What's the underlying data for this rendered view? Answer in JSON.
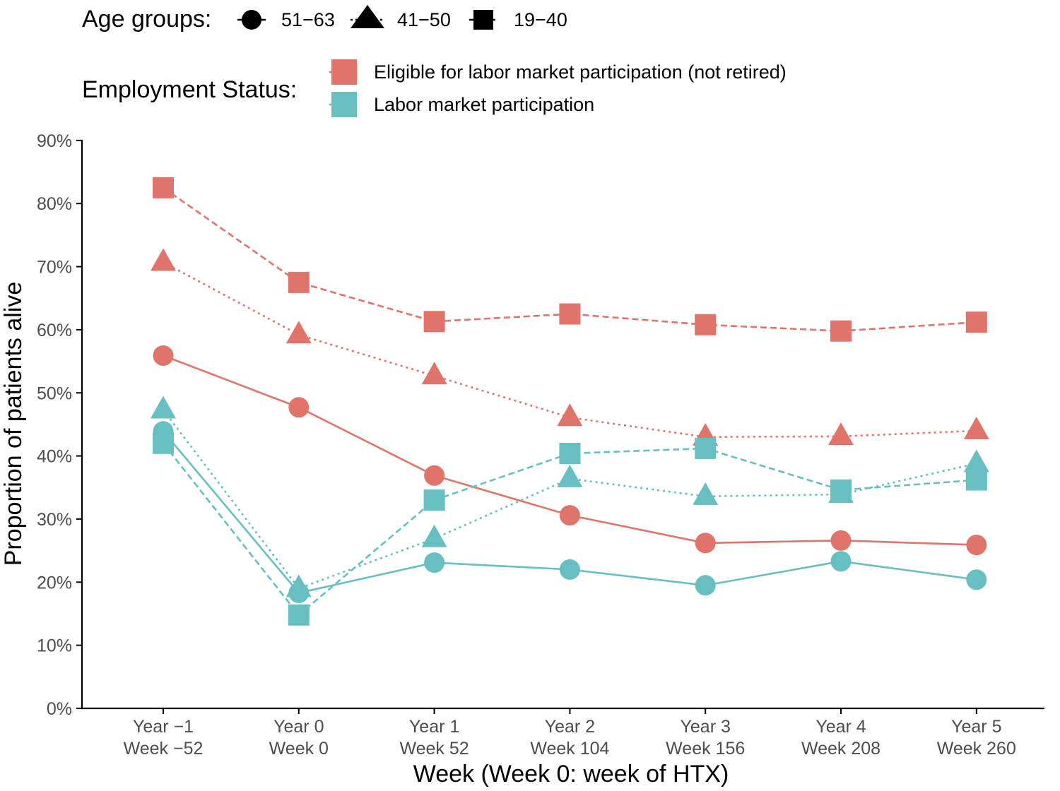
{
  "chart_data": {
    "type": "line",
    "xlabel": "Week (Week 0: week of HTX)",
    "ylabel": "Proportion of patients alive",
    "x_ticks": [
      [
        "Year −1",
        "Week −52"
      ],
      [
        "Year 0",
        "Week 0"
      ],
      [
        "Year 1",
        "Week 52"
      ],
      [
        "Year 2",
        "Week 104"
      ],
      [
        "Year 3",
        "Week 156"
      ],
      [
        "Year 4",
        "Week 208"
      ],
      [
        "Year 5",
        "Week 260"
      ]
    ],
    "y_ticks": [
      "0%",
      "10%",
      "20%",
      "30%",
      "40%",
      "50%",
      "60%",
      "70%",
      "80%",
      "90%"
    ],
    "ylim": [
      0,
      90
    ],
    "grid": false,
    "legend_placement": "top",
    "legend_age": {
      "title": "Age groups:",
      "items": [
        {
          "label": "51−63",
          "shape": "circle",
          "linetype": "solid"
        },
        {
          "label": "41−50",
          "shape": "triangle",
          "linetype": "dotted"
        },
        {
          "label": "19−40",
          "shape": "square",
          "linetype": "dashed"
        }
      ]
    },
    "legend_status": {
      "title": "Employment Status:",
      "items": [
        {
          "label": "Eligible for labor market participation (not retired)",
          "color": "#E0736A"
        },
        {
          "label": "Labor market participation",
          "color": "#67BFC2"
        }
      ]
    },
    "series": [
      {
        "status": "Eligible for labor market participation (not retired)",
        "age": "51−63",
        "color": "#E0736A",
        "shape": "circle",
        "linetype": "solid",
        "values": [
          55.9,
          47.7,
          36.9,
          30.6,
          26.2,
          26.6,
          25.9
        ]
      },
      {
        "status": "Eligible for labor market participation (not retired)",
        "age": "41−50",
        "color": "#E0736A",
        "shape": "triangle",
        "linetype": "dotted",
        "values": [
          70.7,
          59.2,
          52.7,
          46.1,
          43.0,
          43.1,
          44.0
        ]
      },
      {
        "status": "Eligible for labor market participation (not retired)",
        "age": "19−40",
        "color": "#E0736A",
        "shape": "square",
        "linetype": "dashed",
        "values": [
          82.5,
          67.5,
          61.3,
          62.5,
          60.8,
          59.8,
          61.2
        ]
      },
      {
        "status": "Labor market participation",
        "age": "51−63",
        "color": "#67BFC2",
        "shape": "circle",
        "linetype": "solid",
        "values": [
          43.9,
          18.3,
          23.1,
          22.0,
          19.5,
          23.3,
          20.4
        ]
      },
      {
        "status": "Labor market participation",
        "age": "41−50",
        "color": "#67BFC2",
        "shape": "triangle",
        "linetype": "dotted",
        "values": [
          47.3,
          19.0,
          26.9,
          36.4,
          33.6,
          33.9,
          38.8
        ]
      },
      {
        "status": "Labor market participation",
        "age": "19−40",
        "color": "#67BFC2",
        "shape": "square",
        "linetype": "dashed",
        "values": [
          42.0,
          14.8,
          33.0,
          40.4,
          41.2,
          34.6,
          36.2
        ]
      }
    ]
  }
}
